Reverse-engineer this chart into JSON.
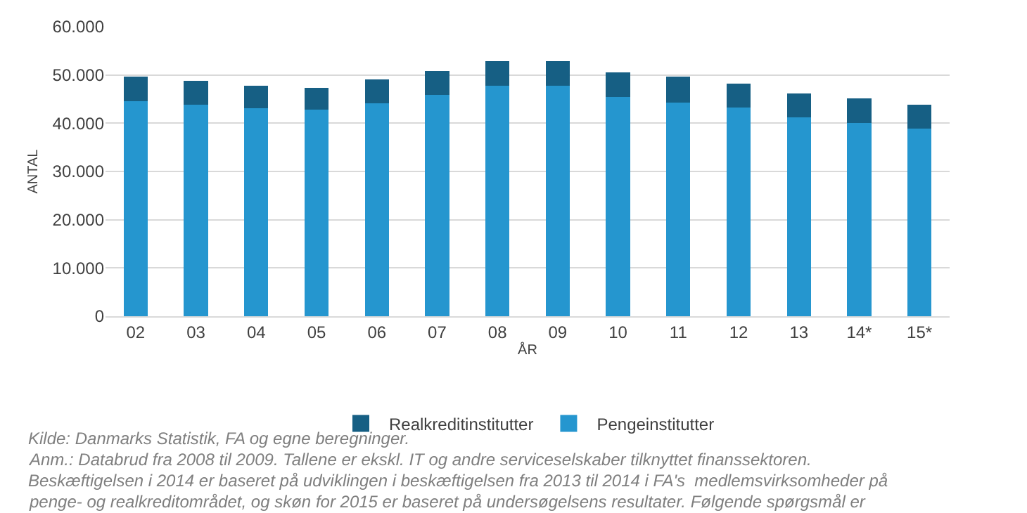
{
  "chart_data": {
    "type": "bar",
    "stacked": true,
    "xlabel": "ÅR",
    "ylabel": "ANTAL",
    "categories": [
      "02",
      "03",
      "04",
      "05",
      "06",
      "07",
      "08",
      "09",
      "10",
      "11",
      "12",
      "13",
      "14*",
      "15*"
    ],
    "series": [
      {
        "name": "Pengeinstitutter",
        "color": "#2596cf",
        "values": [
          44500,
          43900,
          43100,
          42800,
          44200,
          45900,
          47800,
          47800,
          45500,
          44300,
          43200,
          41200,
          40100,
          38900
        ]
      },
      {
        "name": "Realkreditinstitutter",
        "color": "#165f84",
        "values": [
          5100,
          4900,
          4700,
          4600,
          4900,
          4900,
          5000,
          5000,
          5000,
          5300,
          5000,
          5000,
          5100,
          5000
        ]
      }
    ],
    "ylim": [
      0,
      60000
    ],
    "yticks": [
      {
        "value": 0,
        "label": "0"
      },
      {
        "value": 10000,
        "label": "10.000"
      },
      {
        "value": 20000,
        "label": "20.000"
      },
      {
        "value": 30000,
        "label": "30.000"
      },
      {
        "value": 40000,
        "label": "40.000"
      },
      {
        "value": 50000,
        "label": "50.000"
      },
      {
        "value": 60000,
        "label": "60.000"
      }
    ],
    "grid": "y",
    "legend": "bottom",
    "annotations": [
      "Kilde: Danmarks Statistik, FA og egne beregninger.",
      "Anm.: Databrud fra 2008 til 2009. Tallene er ekskl. IT og andre serviceselskaber tilknyttet finanssektoren.",
      "Beskæftigelsen i 2014 er baseret på udviklingen i beskæftigelsen fra 2013 til 2014 i FA's  medlemsvirksomheder på",
      "penge- og realkreditområdet, og skøn for 2015 er baseret på undersøgelsens resultater. Følgende spørgsmål er"
    ]
  }
}
